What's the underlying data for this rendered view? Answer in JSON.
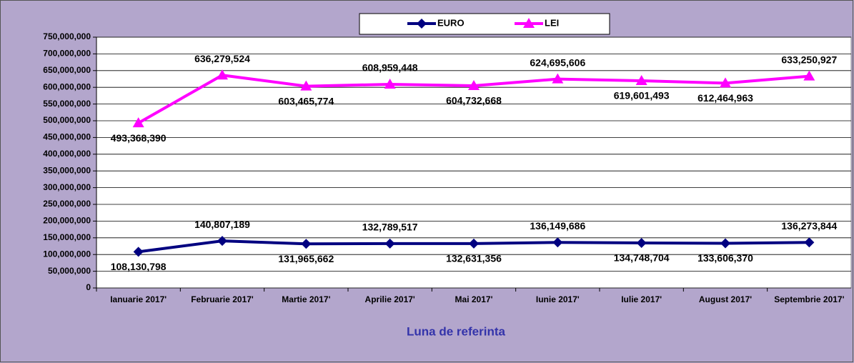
{
  "chart_data": {
    "type": "line",
    "x_label": "Luna de referinta",
    "categories": [
      "Ianuarie 2017'",
      "Februarie 2017'",
      "Martie 2017'",
      "Aprilie 2017'",
      "Mai 2017'",
      "Iunie 2017'",
      "Iulie 2017'",
      "August 2017'",
      "Septembrie 2017'"
    ],
    "series": [
      {
        "name": "EURO",
        "color": "#000080",
        "values": [
          108130798,
          140807189,
          131965662,
          132789517,
          132631356,
          136149686,
          134748704,
          133606370,
          136273844
        ],
        "value_labels": [
          "108,130,798",
          "140,807,189",
          "131,965,662",
          "132,789,517",
          "132,631,356",
          "136,149,686",
          "134,748,704",
          "133,606,370",
          "136,273,844"
        ]
      },
      {
        "name": "LEI",
        "color": "#ff00ff",
        "values": [
          493368390,
          636279524,
          603465774,
          608959448,
          604732668,
          624695606,
          619601493,
          612464963,
          633250927
        ],
        "value_labels": [
          "493,368,390",
          "636,279,524",
          "603,465,774",
          "608,959,448",
          "604,732,668",
          "624,695,606",
          "619,601,493",
          "612,464,963",
          "633,250,927"
        ]
      }
    ],
    "ylim": [
      0,
      750000000
    ],
    "yticks": [
      0,
      {
        "value": 50000000,
        "label": "50,000,000"
      },
      {
        "value": 100000000,
        "label": "100,000,000"
      },
      {
        "value": 150000000,
        "label": "150,000,000"
      },
      {
        "value": 200000000,
        "label": "200,000,000"
      },
      {
        "value": 250000000,
        "label": "250,000,000"
      },
      {
        "value": 300000000,
        "label": "300,000,000"
      },
      {
        "value": 350000000,
        "label": "350,000,000"
      },
      {
        "value": 400000000,
        "label": "400,000,000"
      },
      {
        "value": 450000000,
        "label": "450,000,000"
      },
      {
        "value": 500000000,
        "label": "500,000,000"
      },
      {
        "value": 550000000,
        "label": "550,000,000"
      },
      {
        "value": 600000000,
        "label": "600,000,000"
      },
      {
        "value": 650000000,
        "label": "650,000,000"
      },
      {
        "value": 700000000,
        "label": "700,000,000"
      },
      {
        "value": 750000000,
        "label": "750,000,000"
      }
    ],
    "grid": true,
    "legend": "top"
  }
}
